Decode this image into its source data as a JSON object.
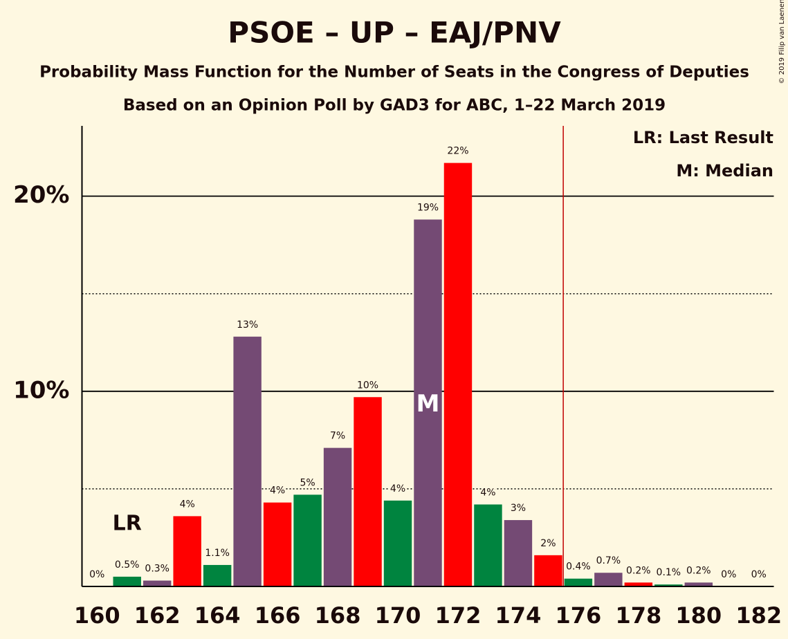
{
  "chart_data": {
    "type": "bar",
    "title": "PSOE – UP – EAJ/PNV",
    "subtitle": "Probability Mass Function for the Number of Seats in the Congress of Deputies",
    "subtitle2": "Based on an Opinion Poll by GAD3 for ABC, 1–22 March 2019",
    "copyright": "© 2019 Filip van Laenen",
    "x": [
      160,
      161,
      162,
      163,
      164,
      165,
      166,
      167,
      168,
      169,
      170,
      171,
      172,
      173,
      174,
      175,
      176,
      177,
      178,
      179,
      180,
      181,
      182
    ],
    "values": [
      0,
      0.5,
      0.3,
      3.6,
      1.1,
      12.8,
      4.3,
      4.7,
      7.1,
      9.7,
      4.4,
      18.8,
      21.7,
      4.2,
      3.4,
      1.6,
      0.4,
      0.7,
      0.2,
      0.1,
      0.2,
      0,
      0
    ],
    "value_labels": [
      "0%",
      "0.5%",
      "0.3%",
      "4%",
      "1.1%",
      "13%",
      "4%",
      "5%",
      "7%",
      "10%",
      "4%",
      "19%",
      "22%",
      "4%",
      "3%",
      "2%",
      "0.4%",
      "0.7%",
      "0.2%",
      "0.1%",
      "0.2%",
      "0%",
      "0%"
    ],
    "bar_colors": [
      "#ff0000",
      "#00843f",
      "#744a74"
    ],
    "xlim": [
      159.5,
      182.5
    ],
    "xticks": [
      160,
      162,
      164,
      166,
      168,
      170,
      172,
      174,
      176,
      178,
      180,
      182
    ],
    "ylim": [
      0,
      23.6
    ],
    "yticks": [
      {
        "value": 10,
        "label": "10%"
      },
      {
        "value": 20,
        "label": "20%"
      }
    ],
    "minor_yticks": [
      5,
      15
    ],
    "grid": true,
    "majority_line": {
      "x": 175.5,
      "color": "#c00000"
    },
    "last_result": {
      "x": 161,
      "label": "LR"
    },
    "median": {
      "x": 171,
      "label": "M"
    },
    "legend": [
      "LR: Last Result",
      "M: Median"
    ]
  }
}
